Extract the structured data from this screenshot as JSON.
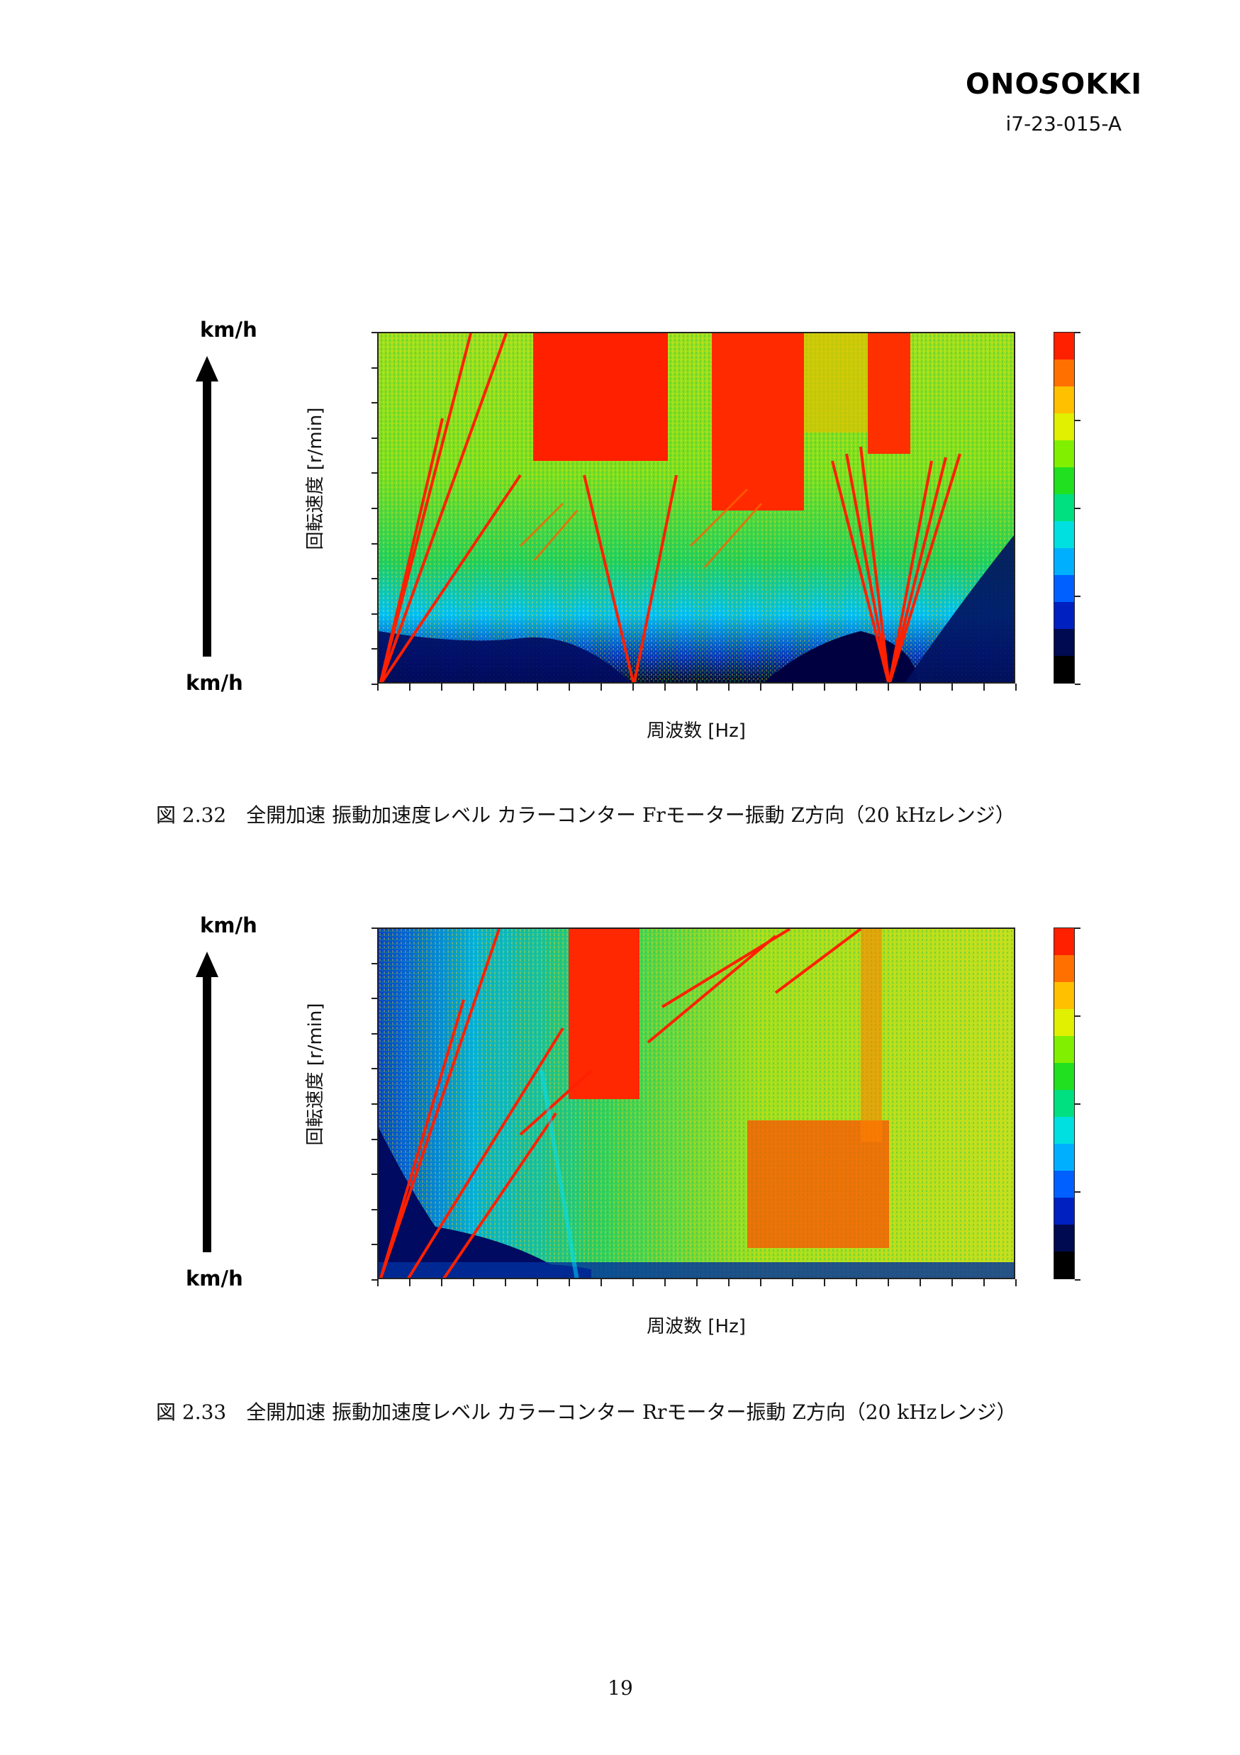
{
  "header": {
    "logo_left": "ONO",
    "logo_s": "S",
    "logo_right": "OKKI",
    "doc_id": "i7-23-015-A"
  },
  "figures": [
    {
      "speed_top": "km/h",
      "speed_bottom": "km/h",
      "y_axis_label": "回転速度 [r/min]",
      "x_axis_label": "周波数 [Hz]",
      "caption": "図 2.32　全開加速 振動加速度レベル カラーコンター Frモーター振動 Z方向（20 kHzレンジ）"
    },
    {
      "speed_top": "km/h",
      "speed_bottom": "km/h",
      "y_axis_label": "回転速度 [r/min]",
      "x_axis_label": "周波数 [Hz]",
      "caption": "図 2.33　全開加速 振動加速度レベル カラーコンター Rrモーター振動 Z方向（20 kHzレンジ）"
    }
  ],
  "colorbar_colors": [
    "#000000",
    "#000a50",
    "#0020c0",
    "#0060ff",
    "#00b0ff",
    "#00e0e0",
    "#00e080",
    "#20e020",
    "#80f000",
    "#e0f000",
    "#ffc000",
    "#ff7000",
    "#ff2000"
  ],
  "page_number": "19"
}
